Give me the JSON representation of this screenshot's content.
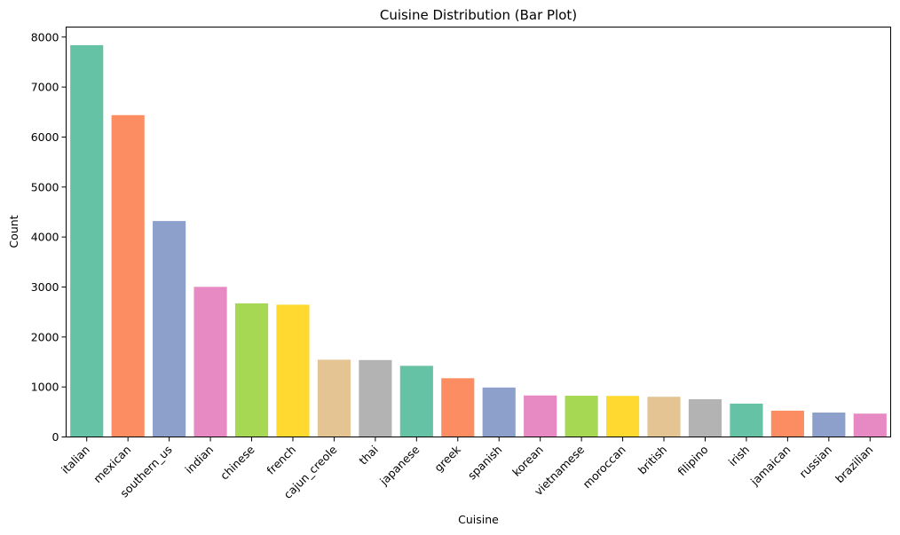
{
  "chart_data": {
    "type": "bar",
    "title": "Cuisine Distribution (Bar Plot)",
    "xlabel": "Cuisine",
    "ylabel": "Count",
    "ylim": [
      0,
      8200
    ],
    "yticks": [
      0,
      1000,
      2000,
      3000,
      4000,
      5000,
      6000,
      7000,
      8000
    ],
    "grid": false,
    "legend": "none",
    "categories": [
      "italian",
      "mexican",
      "southern_us",
      "indian",
      "chinese",
      "french",
      "cajun_creole",
      "thai",
      "japanese",
      "greek",
      "spanish",
      "korean",
      "vietnamese",
      "moroccan",
      "british",
      "filipino",
      "irish",
      "jamaican",
      "russian",
      "brazilian"
    ],
    "values": [
      7838,
      6438,
      4320,
      3003,
      2673,
      2646,
      1546,
      1539,
      1423,
      1175,
      989,
      830,
      825,
      821,
      804,
      755,
      667,
      526,
      489,
      467
    ],
    "palette": [
      "#66c2a5",
      "#fc8d62",
      "#8da0cb",
      "#e78ac3",
      "#a6d854",
      "#ffd92f",
      "#e5c494",
      "#b3b3b3"
    ]
  }
}
